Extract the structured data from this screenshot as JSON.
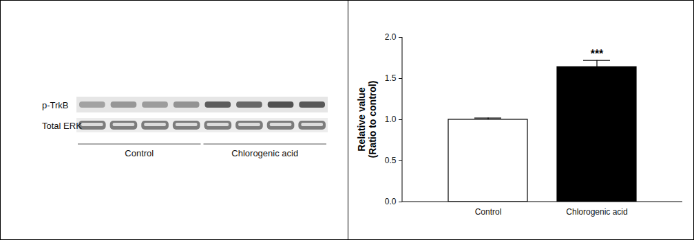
{
  "chart_data": {
    "type": "bar",
    "categories": [
      "Control",
      "Chlorogenic acid"
    ],
    "values": [
      1.0,
      1.64
    ],
    "errors": [
      0.02,
      0.08
    ],
    "colors": [
      "#ffffff",
      "#000000"
    ],
    "ylabel": [
      "Relative value",
      "(Ratio to control)"
    ],
    "ylim": [
      0,
      2
    ],
    "yticks": [
      {
        "value": 0,
        "label": "0.0"
      },
      0.5,
      {
        "value": 1,
        "label": "1.0"
      },
      1.5,
      {
        "value": 2,
        "label": "2.0"
      }
    ],
    "annotations": [
      {
        "category": "Chlorogenic acid",
        "text": "***"
      }
    ]
  },
  "blot": {
    "rows": [
      {
        "label": "p-TrkB",
        "colors": [
          "#9a9a9a",
          "#8e8e8e",
          "#949494",
          "#8a8a8a",
          "#4e4e4e",
          "#5a5a5a",
          "#404040",
          "#484848"
        ]
      },
      {
        "label": "Total ERK",
        "colors": [
          "#7c7c7c",
          "#7c7c7c",
          "#7c7c7c",
          "#7c7c7c",
          "#7c7c7c",
          "#7c7c7c",
          "#7c7c7c",
          "#7c7c7c"
        ]
      }
    ],
    "groups": [
      {
        "label": "Control",
        "lanes": 4
      },
      {
        "label": "Chlorogenic acid",
        "lanes": 4
      }
    ]
  }
}
